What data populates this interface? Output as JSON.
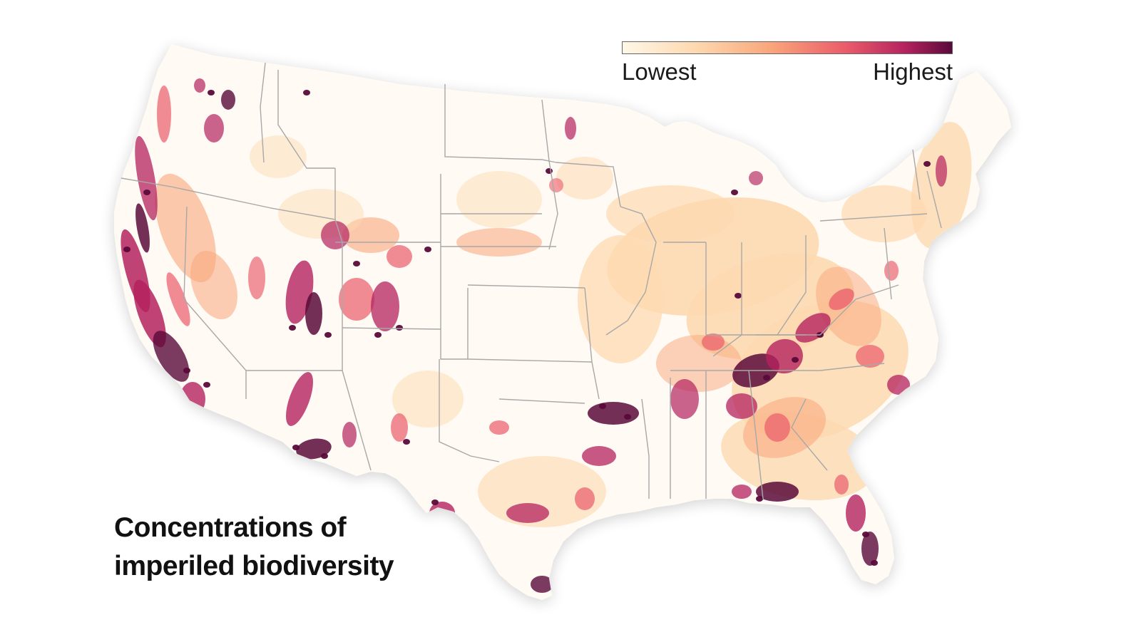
{
  "legend": {
    "low_label": "Lowest",
    "high_label": "Highest",
    "colors": [
      "#fff7e8",
      "#fdd9b0",
      "#f9a67b",
      "#ea5b6a",
      "#b4225e",
      "#5a0a3a"
    ]
  },
  "title": {
    "line1": "Concentrations of",
    "line2": "imperiled biodiversity"
  },
  "map": {
    "region": "Contiguous United States",
    "base_color": "#fffaf3",
    "border_color": "#a8a8a8"
  }
}
